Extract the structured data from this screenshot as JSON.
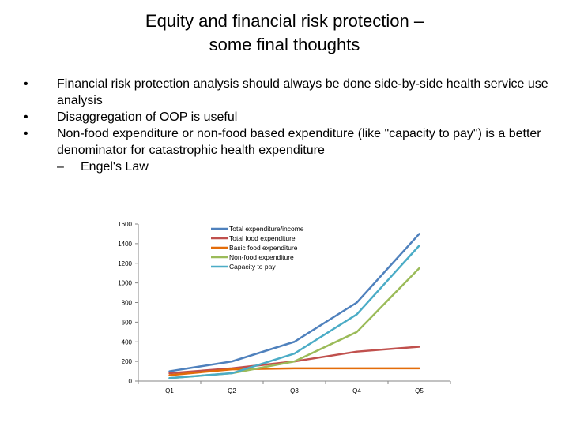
{
  "slide": {
    "title_line1": "Equity and financial risk protection –",
    "title_line2": "some final thoughts",
    "bullets": [
      {
        "marker": "•",
        "text": "Financial risk protection analysis should always be done side-by-side health service use analysis"
      },
      {
        "marker": "•",
        "text": "Disaggregation of OOP is useful"
      },
      {
        "marker": "•",
        "text": "Non-food expenditure or non-food based expenditure (like \"capacity to pay\") is a better denominator for catastrophic health expenditure"
      }
    ],
    "sub_bullets": [
      {
        "marker": "–",
        "text": "Engel's Law"
      }
    ]
  },
  "chart_data": {
    "type": "line",
    "title": "",
    "xlabel": "",
    "ylabel": "",
    "categories": [
      "Q1",
      "Q2",
      "Q3",
      "Q4",
      "Q5"
    ],
    "ylim": [
      0,
      1600
    ],
    "yticks": [
      0,
      200,
      400,
      600,
      800,
      1000,
      1200,
      1400,
      1600
    ],
    "grid": false,
    "legend_position": "top-right",
    "series": [
      {
        "name": "Total expenditure/income",
        "color": "#4f81bd",
        "values": [
          100,
          200,
          400,
          800,
          1500
        ]
      },
      {
        "name": "Total food expenditure",
        "color": "#c0504d",
        "values": [
          80,
          130,
          200,
          300,
          350
        ]
      },
      {
        "name": "Basic food expenditure",
        "color": "#e36c09",
        "values": [
          60,
          120,
          130,
          130,
          130
        ]
      },
      {
        "name": "Non-food expenditure",
        "color": "#9bbb59",
        "values": [
          30,
          80,
          200,
          500,
          1150
        ]
      },
      {
        "name": "Capacity to pay",
        "color": "#4bacc6",
        "values": [
          30,
          80,
          280,
          680,
          1380
        ]
      }
    ]
  }
}
